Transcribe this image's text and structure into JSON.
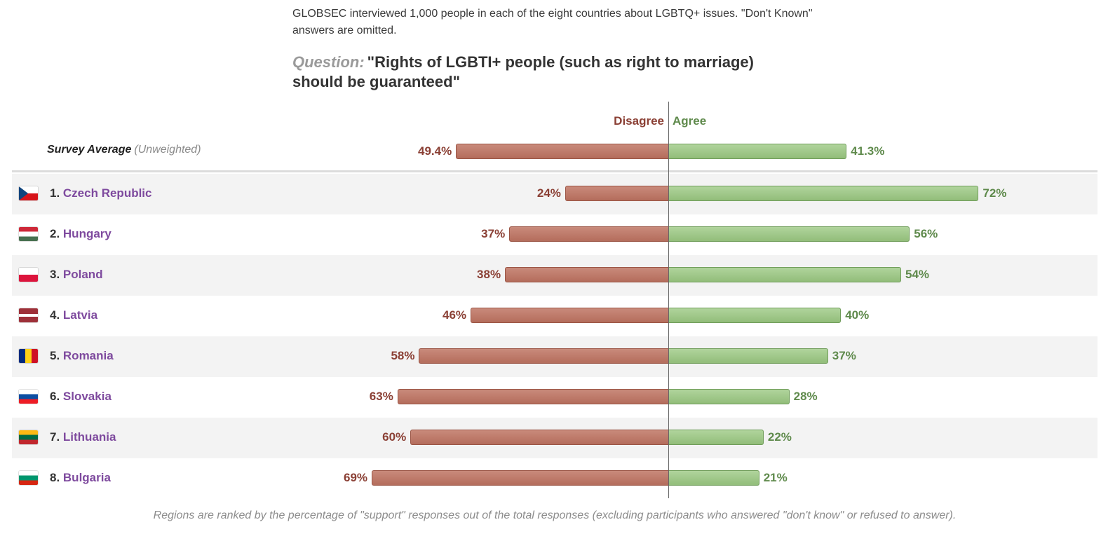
{
  "intro_text": "GLOBSEC interviewed 1,000 people in each of the eight countries about LGBTQ+ issues. \"Don't Known\" answers are omitted.",
  "question_label": "Question:",
  "question_text": "\"Rights of LGBTI+ people (such as right to marriage) should be guaranteed\"",
  "footnote": "Regions are ranked by the percentage of \"support\" responses out of the total responses (excluding participants who answered \"don't know\" or refused to answer).",
  "colors": {
    "disagree": "#b46d5c",
    "agree": "#92bd7a",
    "country_link": "#7e4a9e"
  },
  "chart_data": {
    "type": "bar",
    "orientation": "horizontal-diverging",
    "series": [
      {
        "name": "Disagree",
        "values": [
          24,
          37,
          38,
          46,
          58,
          63,
          60,
          69
        ]
      },
      {
        "name": "Agree",
        "values": [
          72,
          56,
          54,
          40,
          37,
          28,
          22,
          21
        ]
      }
    ],
    "average": {
      "label": "Survey Average",
      "sublabel": "(Unweighted)",
      "disagree": 49.4,
      "agree": 41.3,
      "disagree_text": "49.4%",
      "agree_text": "41.3%"
    },
    "rows": [
      {
        "rank": "1.",
        "country": "Czech Republic",
        "flag": "czech-republic-flag",
        "disagree": 24,
        "agree": 72,
        "disagree_text": "24%",
        "agree_text": "72%"
      },
      {
        "rank": "2.",
        "country": "Hungary",
        "flag": "hungary-flag",
        "disagree": 37,
        "agree": 56,
        "disagree_text": "37%",
        "agree_text": "56%"
      },
      {
        "rank": "3.",
        "country": "Poland",
        "flag": "poland-flag",
        "disagree": 38,
        "agree": 54,
        "disagree_text": "38%",
        "agree_text": "54%"
      },
      {
        "rank": "4.",
        "country": "Latvia",
        "flag": "latvia-flag",
        "disagree": 46,
        "agree": 40,
        "disagree_text": "46%",
        "agree_text": "40%"
      },
      {
        "rank": "5.",
        "country": "Romania",
        "flag": "romania-flag",
        "disagree": 58,
        "agree": 37,
        "disagree_text": "58%",
        "agree_text": "37%"
      },
      {
        "rank": "6.",
        "country": "Slovakia",
        "flag": "slovakia-flag",
        "disagree": 63,
        "agree": 28,
        "disagree_text": "63%",
        "agree_text": "28%"
      },
      {
        "rank": "7.",
        "country": "Lithuania",
        "flag": "lithuania-flag",
        "disagree": 60,
        "agree": 22,
        "disagree_text": "60%",
        "agree_text": "22%"
      },
      {
        "rank": "8.",
        "country": "Bulgaria",
        "flag": "bulgaria-flag",
        "disagree": 69,
        "agree": 21,
        "disagree_text": "69%",
        "agree_text": "21%"
      }
    ]
  }
}
